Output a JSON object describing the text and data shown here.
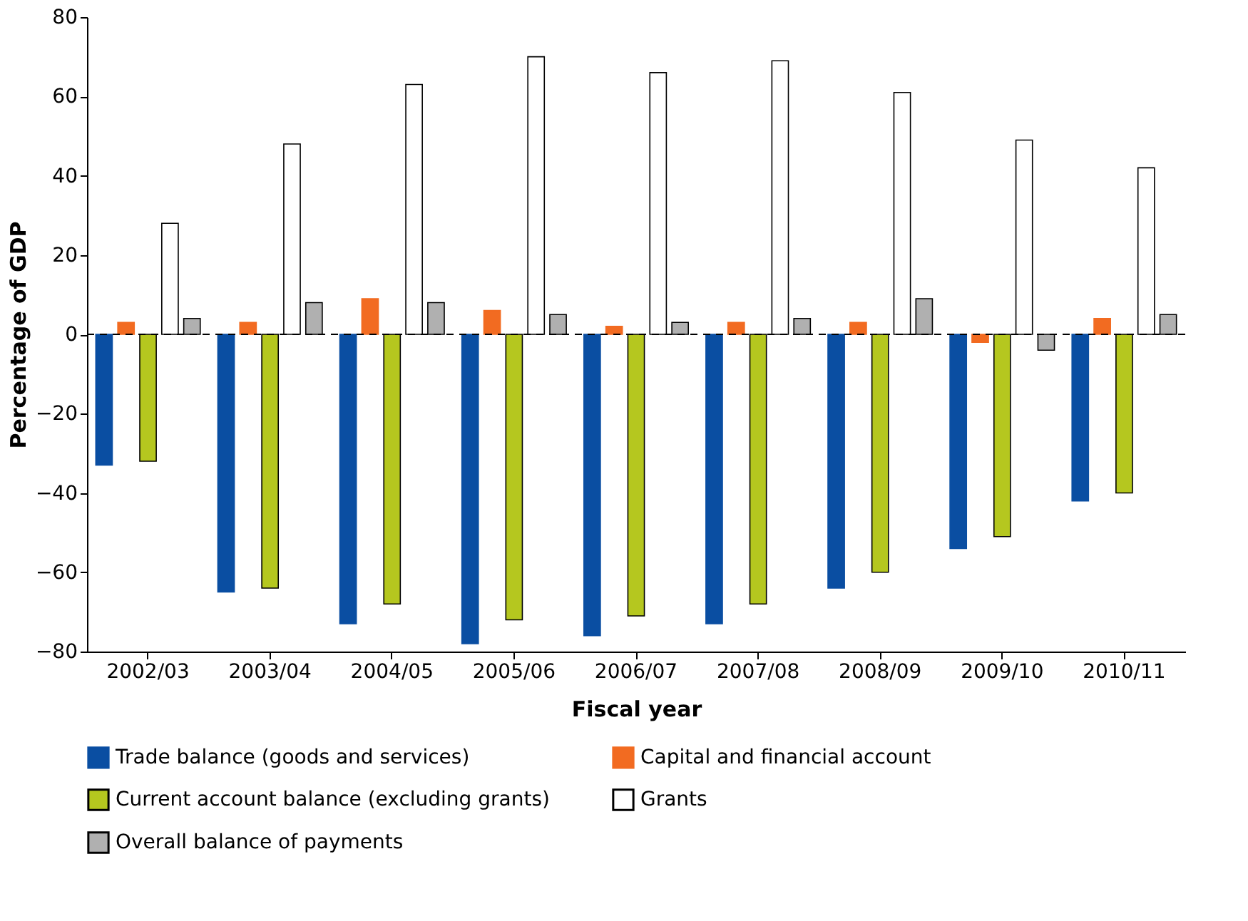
{
  "chart_data": {
    "type": "bar",
    "xlabel": "Fiscal year",
    "ylabel": "Percentage of GDP",
    "categories": [
      "2002/03",
      "2003/04",
      "2004/05",
      "2005/06",
      "2006/07",
      "2007/08",
      "2008/09",
      "2009/10",
      "2010/11"
    ],
    "series": [
      {
        "name": "Trade balance (goods and services)",
        "color": "#0a4ea2",
        "values": [
          -33,
          -65,
          -73,
          -78,
          -76,
          -73,
          -64,
          -54,
          -42
        ]
      },
      {
        "name": "Capital and financial account",
        "color": "#f26b21",
        "values": [
          3,
          3,
          9,
          6,
          2,
          3,
          3,
          -2,
          4
        ]
      },
      {
        "name": "Current account balance (excluding grants)",
        "color": "#b5c71f",
        "values": [
          -32,
          -64,
          -68,
          -72,
          -71,
          -68,
          -60,
          -51,
          -40
        ]
      },
      {
        "name": "Grants",
        "color": "#ffffff",
        "values": [
          28,
          48,
          63,
          70,
          66,
          69,
          61,
          49,
          42
        ]
      },
      {
        "name": "Overall balance of payments",
        "color": "#b0b0b0",
        "values": [
          4,
          8,
          8,
          5,
          3,
          4,
          9,
          -4,
          5
        ]
      }
    ],
    "ylim": [
      -80,
      80
    ],
    "yticks": [
      -80,
      -60,
      -40,
      -20,
      0,
      20,
      40,
      60,
      80
    ],
    "grid": false,
    "legend": "bottom",
    "ref_lines": [
      {
        "axis": "y",
        "value": 0,
        "line_style": "dashed"
      }
    ]
  }
}
